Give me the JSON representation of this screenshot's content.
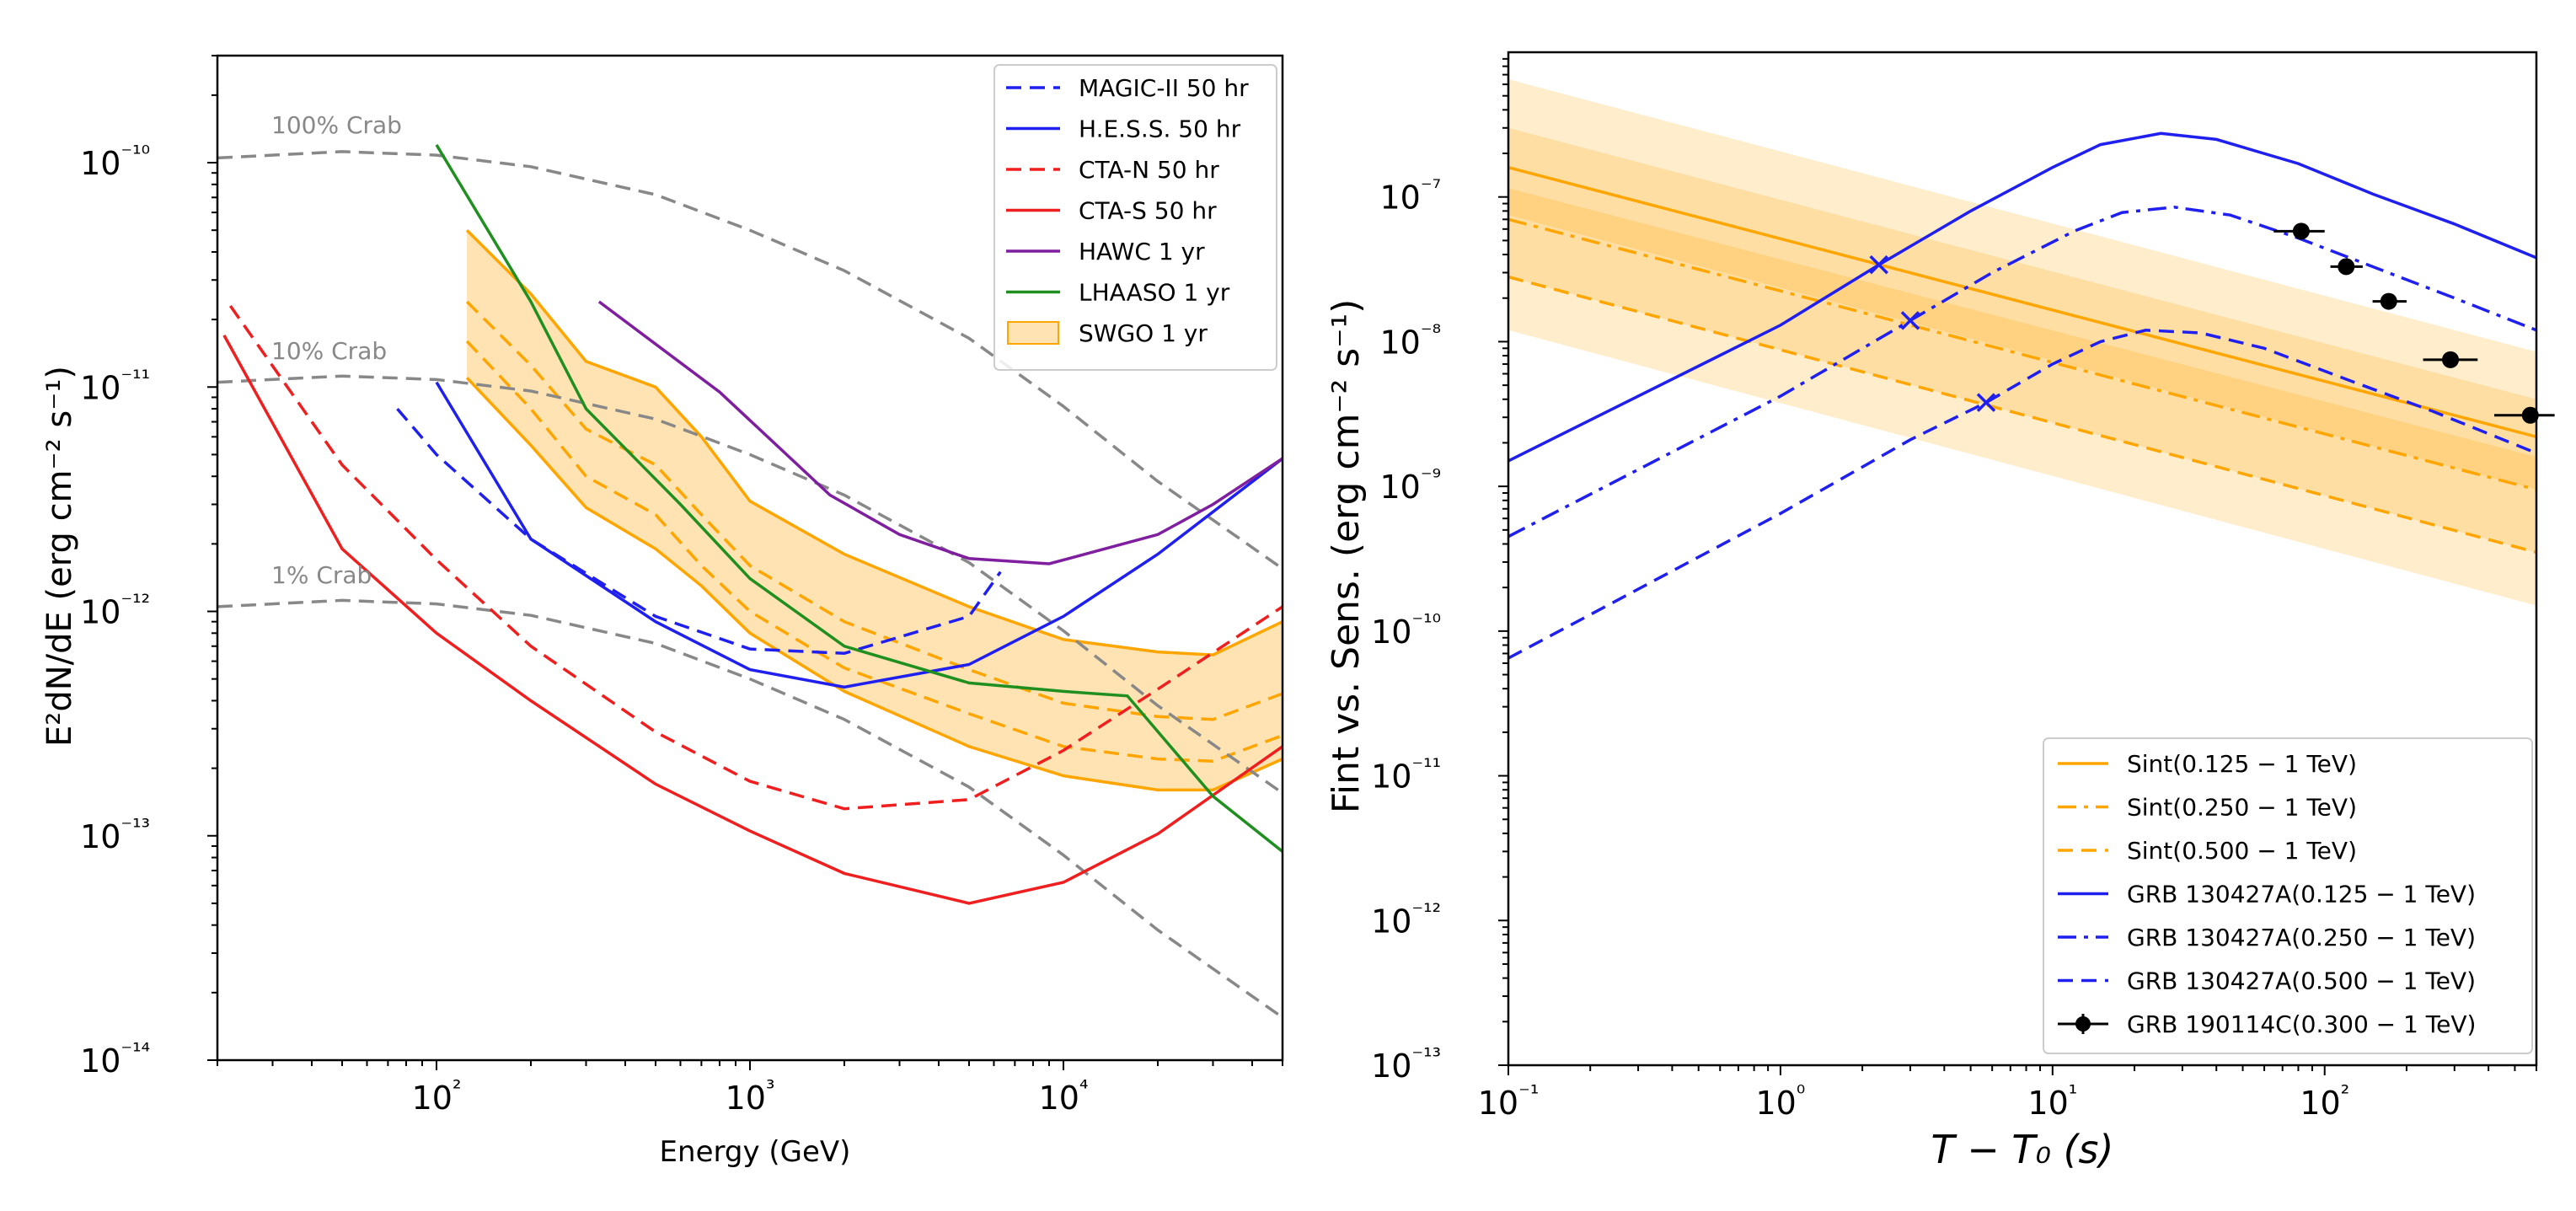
{
  "chart_data": [
    {
      "type": "line",
      "title": "",
      "xlabel": "Energy (GeV)",
      "ylabel": "E²dN/dE    (erg cm⁻² s⁻¹)",
      "xscale": "log",
      "yscale": "log",
      "xlim": [
        20,
        50000
      ],
      "ylim": [
        1e-14,
        3e-10
      ],
      "x_tick_labels": [
        "10²",
        "10³",
        "10⁴"
      ],
      "y_tick_labels": [
        "10⁻¹⁴",
        "10⁻¹³",
        "10⁻¹²",
        "10⁻¹¹",
        "10⁻¹⁰"
      ],
      "crab_labels": [
        "100% Crab",
        "10% Crab",
        "1% Crab"
      ],
      "legend_position": "upper right",
      "crab_curves": [
        {
          "name": "100% Crab",
          "x": [
            20,
            50,
            100,
            200,
            500,
            1000,
            2000,
            5000,
            10000,
            20000,
            50000
          ],
          "y": [
            1.05e-10,
            1.12e-10,
            1.08e-10,
            9.6e-11,
            7.2e-11,
            5e-11,
            3.3e-11,
            1.65e-11,
            8.2e-12,
            3.8e-12,
            1.55e-12
          ]
        },
        {
          "name": "10% Crab",
          "x": [
            20,
            50,
            100,
            200,
            500,
            1000,
            2000,
            5000,
            10000,
            20000,
            50000
          ],
          "y": [
            1.05e-11,
            1.12e-11,
            1.08e-11,
            9.6e-12,
            7.2e-12,
            5e-12,
            3.3e-12,
            1.65e-12,
            8.2e-13,
            3.8e-13,
            1.55e-13
          ]
        },
        {
          "name": "1% Crab",
          "x": [
            20,
            50,
            100,
            200,
            500,
            1000,
            2000,
            5000,
            10000,
            20000,
            50000
          ],
          "y": [
            1.05e-12,
            1.12e-12,
            1.08e-12,
            9.6e-13,
            7.2e-13,
            5e-13,
            3.3e-13,
            1.65e-13,
            8.2e-14,
            3.8e-14,
            1.55e-14
          ]
        }
      ],
      "series": [
        {
          "name": "MAGIC-II 50 hr",
          "color": "#1f1ff0",
          "dash": "dashed",
          "x": [
            75,
            100,
            200,
            500,
            1000,
            2000,
            5000,
            6300
          ],
          "y": [
            8e-12,
            5e-12,
            2.1e-12,
            9.5e-13,
            6.8e-13,
            6.5e-13,
            9.5e-13,
            1.5e-12
          ]
        },
        {
          "name": "H.E.S.S. 50 hr",
          "color": "#1f1ff0",
          "dash": "solid",
          "x": [
            100,
            200,
            500,
            1000,
            2000,
            5000,
            10000,
            20000,
            50000
          ],
          "y": [
            1.05e-11,
            2.1e-12,
            9e-13,
            5.5e-13,
            4.6e-13,
            5.8e-13,
            9.5e-13,
            1.8e-12,
            4.8e-12
          ]
        },
        {
          "name": "CTA-N 50 hr",
          "color": "#f01f1f",
          "dash": "dashed",
          "x": [
            22,
            50,
            100,
            200,
            500,
            1000,
            2000,
            5000,
            10000,
            20000,
            50000
          ],
          "y": [
            2.3e-11,
            4.5e-12,
            1.7e-12,
            7e-13,
            2.9e-13,
            1.75e-13,
            1.32e-13,
            1.45e-13,
            2.4e-13,
            4.5e-13,
            1.05e-12
          ]
        },
        {
          "name": "CTA-S 50 hr",
          "color": "#f01f1f",
          "dash": "solid",
          "x": [
            21,
            50,
            100,
            200,
            500,
            1000,
            2000,
            5000,
            10000,
            20000,
            50000
          ],
          "y": [
            1.7e-11,
            1.9e-12,
            8e-13,
            4e-13,
            1.7e-13,
            1.05e-13,
            6.8e-14,
            5e-14,
            6.2e-14,
            1.02e-13,
            2.5e-13
          ]
        },
        {
          "name": "HAWC 1 yr",
          "color": "#7f1f9f",
          "dash": "solid",
          "x": [
            330,
            800,
            1800,
            3000,
            5000,
            9000,
            20000,
            30000,
            50000
          ],
          "y": [
            2.4e-11,
            9.5e-12,
            3.3e-12,
            2.2e-12,
            1.72e-12,
            1.63e-12,
            2.2e-12,
            3e-12,
            4.8e-12
          ]
        },
        {
          "name": "LHAASO 1 yr",
          "color": "#1f8f1f",
          "dash": "solid",
          "x": [
            100,
            200,
            300,
            600,
            1000,
            2000,
            5000,
            10000,
            16000,
            30000,
            50000
          ],
          "y": [
            1.2e-10,
            2.4e-11,
            8e-12,
            3e-12,
            1.4e-12,
            7e-13,
            4.8e-13,
            4.4e-13,
            4.2e-13,
            1.5e-13,
            8.5e-14
          ]
        }
      ],
      "band": {
        "name": "SWGO 1 yr",
        "color": "#ffe3b3",
        "x": [
          125,
          200,
          300,
          500,
          700,
          1000,
          2000,
          5000,
          10000,
          20000,
          30000,
          50000
        ],
        "upper": [
          5e-11,
          2.6e-11,
          1.3e-11,
          1e-11,
          6e-12,
          3.1e-12,
          1.8e-12,
          1.05e-12,
          7.5e-13,
          6.6e-13,
          6.4e-13,
          9e-13
        ],
        "mid_upper": [
          2.4e-11,
          1.25e-11,
          6.5e-12,
          4.5e-12,
          2.7e-12,
          1.6e-12,
          9e-13,
          5.5e-13,
          3.9e-13,
          3.4e-13,
          3.3e-13,
          4.3e-13
        ],
        "mid_lower": [
          1.6e-11,
          8e-12,
          4e-12,
          2.7e-12,
          1.6e-12,
          1e-12,
          5.6e-13,
          3.5e-13,
          2.5e-13,
          2.2e-13,
          2.15e-13,
          2.8e-13
        ],
        "lower": [
          1.1e-11,
          5.5e-12,
          2.9e-12,
          1.9e-12,
          1.3e-12,
          8e-13,
          4.4e-13,
          2.5e-13,
          1.85e-13,
          1.6e-13,
          1.6e-13,
          2.2e-13
        ]
      },
      "legend": [
        "MAGIC-II 50 hr",
        "H.E.S.S. 50 hr",
        "CTA-N 50 hr",
        "CTA-S 50 hr",
        "HAWC 1 yr",
        "LHAASO 1 yr",
        "SWGO 1 yr"
      ]
    },
    {
      "type": "line",
      "title": "",
      "xlabel": "T − T₀ (s)",
      "ylabel": "Fint vs. Sens.    (erg cm⁻² s⁻¹)",
      "xscale": "log",
      "yscale": "log",
      "xlim": [
        0.1,
        600
      ],
      "ylim": [
        1e-13,
        1e-06
      ],
      "x_tick_labels": [
        "10⁻¹",
        "10⁰",
        "10¹",
        "10²"
      ],
      "y_tick_labels": [
        "10⁻¹³",
        "10⁻¹²",
        "10⁻¹¹",
        "10⁻¹⁰",
        "10⁻⁹",
        "10⁻⁸",
        "10⁻⁷"
      ],
      "legend_position": "lower right",
      "sensitivity_bands": [
        {
          "name": "Sint(0.125 − 1 TeV)",
          "dash": "solid",
          "x": [
            0.1,
            600
          ],
          "center": [
            1.6e-07,
            2.2e-09
          ],
          "upper": [
            6.5e-07,
            8.5e-09
          ],
          "lower": [
            7.5e-08,
            9.5e-10
          ]
        },
        {
          "name": "Sint(0.250 − 1 TeV)",
          "dash": "dashdot",
          "x": [
            0.1,
            600
          ],
          "center": [
            7e-08,
            9.5e-10
          ],
          "upper": [
            3e-07,
            4e-09
          ],
          "lower": [
            2.8e-08,
            3.5e-10
          ]
        },
        {
          "name": "Sint(0.500 − 1 TeV)",
          "dash": "dashed",
          "x": [
            0.1,
            600
          ],
          "center": [
            2.8e-08,
            3.5e-10
          ],
          "upper": [
            1.15e-07,
            1.6e-09
          ],
          "lower": [
            1.2e-08,
            1.5e-10
          ]
        }
      ],
      "series": [
        {
          "name": "GRB 130427A(0.125 − 1 TeV)",
          "color": "#1f1ff0",
          "dash": "solid",
          "x": [
            0.1,
            1,
            2.3,
            5,
            10,
            15,
            25,
            40,
            80,
            150,
            300,
            600
          ],
          "y": [
            1.5e-09,
            1.3e-08,
            3.4e-08,
            8e-08,
            1.6e-07,
            2.3e-07,
            2.75e-07,
            2.5e-07,
            1.7e-07,
            1.05e-07,
            6.5e-08,
            3.8e-08
          ]
        },
        {
          "name": "GRB 130427A(0.250 − 1 TeV)",
          "color": "#1f1ff0",
          "dash": "dashdot",
          "x": [
            0.1,
            1,
            3,
            6,
            12,
            18,
            28,
            45,
            80,
            150,
            300,
            600
          ],
          "y": [
            4.5e-10,
            4.2e-09,
            1.4e-08,
            3e-08,
            5.8e-08,
            7.8e-08,
            8.5e-08,
            7.5e-08,
            5.2e-08,
            3.3e-08,
            2e-08,
            1.2e-08
          ]
        },
        {
          "name": "GRB 130427A(0.500 − 1 TeV)",
          "color": "#1f1ff0",
          "dash": "dashed",
          "x": [
            0.1,
            1,
            3,
            5.7,
            10,
            15,
            22,
            35,
            60,
            120,
            250,
            600
          ],
          "y": [
            6.5e-11,
            6.5e-10,
            2.1e-09,
            3.8e-09,
            7e-09,
            1e-08,
            1.2e-08,
            1.15e-08,
            9e-09,
            5.5e-09,
            3.3e-09,
            1.7e-09
          ]
        },
        {
          "name": "GRB 190114C(0.300 − 1 TeV)",
          "color": "#000000",
          "type": "errorbar",
          "x": [
            82,
            120,
            172,
            290,
            570
          ],
          "y": [
            5.8e-08,
            3.3e-08,
            1.9e-08,
            7.5e-09,
            3.1e-09
          ],
          "xerr_low": [
            65,
            105,
            150,
            230,
            420
          ],
          "xerr_high": [
            100,
            138,
            200,
            365,
            700
          ]
        }
      ],
      "crossings": [
        {
          "x": 2.3,
          "y": 3.4e-08
        },
        {
          "x": 3.0,
          "y": 1.4e-08
        },
        {
          "x": 5.7,
          "y": 3.8e-09
        }
      ],
      "legend": [
        "Sint(0.125 − 1 TeV)",
        "Sint(0.250 − 1 TeV)",
        "Sint(0.500 − 1 TeV)",
        "GRB 130427A(0.125 − 1 TeV)",
        "GRB 130427A(0.250 − 1 TeV)",
        "GRB 130427A(0.500 − 1 TeV)",
        "GRB 190114C(0.300 − 1 TeV)"
      ]
    }
  ]
}
